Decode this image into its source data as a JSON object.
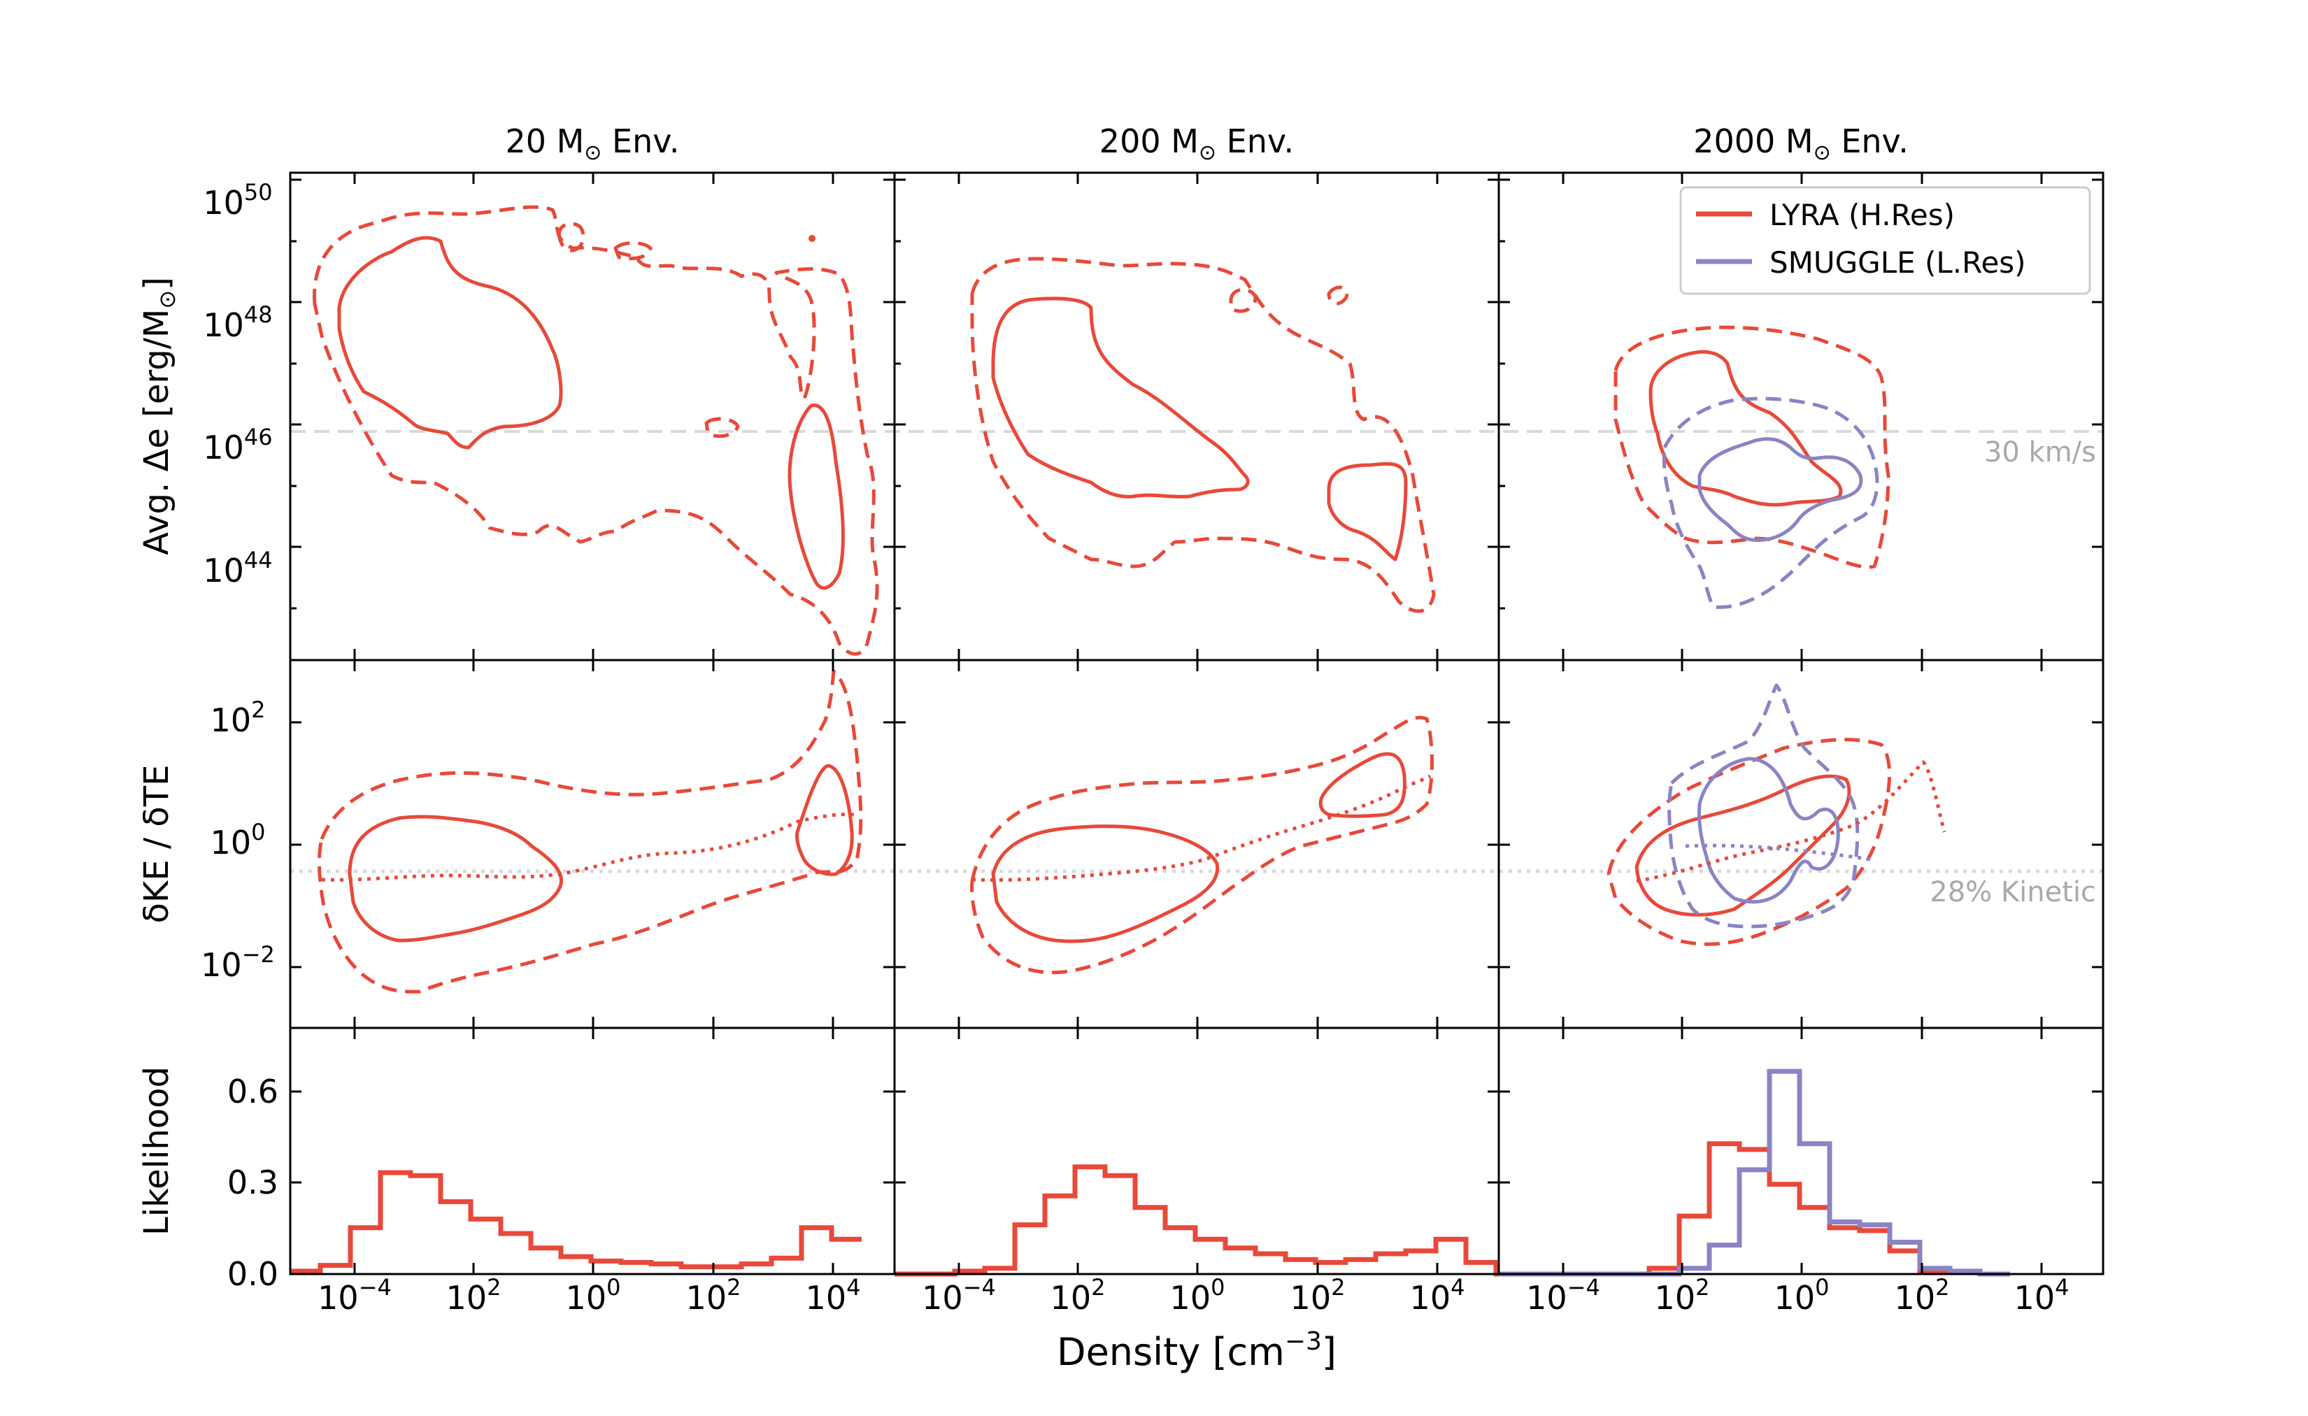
{
  "figure": {
    "colors": {
      "lyra": "#e8493a",
      "smuggle": "#8a84c4",
      "ref_line": "#cccccc",
      "ref_text": "#a9a9a9",
      "axis": "#000000"
    },
    "legend": {
      "placement": "upper-right of third column, top row",
      "entries": [
        {
          "label": "LYRA (H.Res)",
          "color": "#e8493a"
        },
        {
          "label": "SMUGGLE (L.Res)",
          "color": "#8a84c4"
        }
      ]
    },
    "column_titles": [
      {
        "prefix": "20 M",
        "sub": "⊙",
        "suffix": " Env."
      },
      {
        "prefix": "200 M",
        "sub": "⊙",
        "suffix": " Env."
      },
      {
        "prefix": "2000 M",
        "sub": "⊙",
        "suffix": " Env."
      }
    ],
    "shared_xlabel": {
      "text": "Density [cm",
      "sup": "−3",
      "end": "]"
    }
  },
  "chart_data": [
    {
      "type": "line",
      "row": "energy",
      "ylabel": "Avg. Δe [erg/M⊙]",
      "y_scale": "log",
      "ylim": [
        1e+42,
        1e+51
      ],
      "yticks": [
        {
          "base": "10",
          "exp": "44",
          "value": 1e+44
        },
        {
          "base": "10",
          "exp": "46",
          "value": 1e+46
        },
        {
          "base": "10",
          "exp": "48",
          "value": 1e+48
        },
        {
          "base": "10",
          "exp": "50",
          "value": 1e+50
        }
      ],
      "x_scale": "log",
      "reference_line": {
        "y": 1.6e+46,
        "label": "30 km/s",
        "style": "dashed"
      },
      "series": [
        {
          "name": "LYRA (H.Res)",
          "color": "#e8493a",
          "description": "solid and dashed density contours in each panel"
        },
        {
          "name": "SMUGGLE (L.Res)",
          "color": "#8a84c4",
          "description": "solid and dashed contours in the 2000 M⊙ panel"
        }
      ]
    },
    {
      "type": "line",
      "row": "ratio",
      "ylabel": "δKE / δTE",
      "y_scale": "log",
      "ylim": [
        0.001,
        1000
      ],
      "yticks": [
        {
          "base": "10",
          "exp": "−2",
          "value": 0.01
        },
        {
          "base": "10",
          "exp": "0",
          "value": 1
        },
        {
          "base": "10",
          "exp": "2",
          "value": 100
        }
      ],
      "reference_line": {
        "y": 0.39,
        "label": "28% Kinetic",
        "style": "dotted"
      },
      "series": [
        {
          "name": "LYRA (H.Res)",
          "color": "#e8493a",
          "description": "solid/dashed contours with dotted median curve"
        },
        {
          "name": "SMUGGLE (L.Res)",
          "color": "#8a84c4",
          "description": "contours with dotted median in the 2000 M⊙ panel"
        }
      ]
    },
    {
      "type": "bar",
      "row": "likelihood",
      "ylabel": "Likelihood",
      "ylim": [
        0,
        0.85
      ],
      "yticks": [
        {
          "text": "0.0",
          "value": 0.0
        },
        {
          "text": "0.3",
          "value": 0.3
        },
        {
          "text": "0.6",
          "value": 0.6
        }
      ],
      "xticks": [
        {
          "base": "10",
          "exp": "−4"
        },
        {
          "base": "10",
          "exp": "2"
        },
        {
          "base": "10",
          "exp": "0"
        },
        {
          "base": "10",
          "exp": "2"
        },
        {
          "base": "10",
          "exp": "4"
        }
      ],
      "panels": [
        {
          "column": "20 M⊙ Env.",
          "series": [
            {
              "name": "LYRA (H.Res)",
              "color": "#e8493a",
              "values": [
                0.01,
                0.03,
                0.16,
                0.35,
                0.34,
                0.25,
                0.19,
                0.14,
                0.09,
                0.06,
                0.045,
                0.04,
                0.035,
                0.025,
                0.025,
                0.035,
                0.055,
                0.16,
                0.12
              ]
            }
          ]
        },
        {
          "column": "200 M⊙ Env.",
          "series": [
            {
              "name": "LYRA (H.Res)",
              "color": "#e8493a",
              "values": [
                0.0,
                0.0,
                0.01,
                0.02,
                0.17,
                0.27,
                0.37,
                0.34,
                0.23,
                0.16,
                0.12,
                0.09,
                0.07,
                0.05,
                0.04,
                0.05,
                0.07,
                0.08,
                0.12,
                0.04,
                0.0
              ]
            }
          ]
        },
        {
          "column": "2000 M⊙ Env.",
          "series": [
            {
              "name": "LYRA (H.Res)",
              "color": "#e8493a",
              "values": [
                0.0,
                0.0,
                0.0,
                0.0,
                0.0,
                0.02,
                0.2,
                0.45,
                0.43,
                0.31,
                0.23,
                0.16,
                0.15,
                0.08,
                0.01,
                0.005,
                0.0
              ]
            },
            {
              "name": "SMUGGLE (L.Res)",
              "color": "#8a84c4",
              "values": [
                0.0,
                0.0,
                0.0,
                0.0,
                0.0,
                0.0,
                0.02,
                0.1,
                0.36,
                0.7,
                0.45,
                0.18,
                0.17,
                0.11,
                0.02,
                0.01,
                0.0
              ]
            }
          ]
        }
      ]
    }
  ]
}
